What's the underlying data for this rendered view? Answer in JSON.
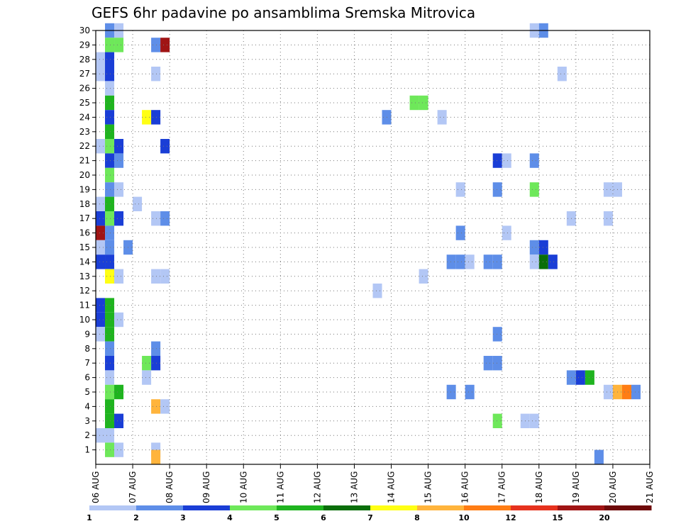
{
  "chart_data": {
    "type": "heatmap",
    "title": "GEFS 6hr padavine po ansamblima Sremska Mitrovica",
    "xlabel": "",
    "ylabel": "",
    "x_ticks": [
      "06 AUG",
      "07 AUG",
      "08 AUG",
      "09 AUG",
      "10 AUG",
      "11 AUG",
      "12 AUG",
      "13 AUG",
      "14 AUG",
      "15 AUG",
      "16 AUG",
      "17 AUG",
      "18 AUG",
      "19 AUG",
      "20 AUG",
      "21 AUG"
    ],
    "x_range_days": [
      6,
      21
    ],
    "y_ticks": [
      1,
      2,
      3,
      4,
      5,
      6,
      7,
      8,
      9,
      10,
      11,
      12,
      13,
      14,
      15,
      16,
      17,
      18,
      19,
      20,
      21,
      22,
      23,
      24,
      25,
      26,
      27,
      28,
      29,
      30
    ],
    "y_range": [
      0,
      30
    ],
    "grid": true,
    "legend": "bottom",
    "colorbar": {
      "labels": [
        "1",
        "2",
        "3",
        "4",
        "5",
        "6",
        "7",
        "8",
        "10",
        "12",
        "15",
        "20"
      ],
      "colors": [
        "#b3c7f5",
        "#5e8ee8",
        "#1a3ed6",
        "#6ee85a",
        "#1fb41f",
        "#0a6e0a",
        "#ffff14",
        "#ffb43c",
        "#ff7d14",
        "#e6321e",
        "#a01414",
        "#6e0a0a"
      ]
    },
    "cells": [
      {
        "m": 30,
        "d": 6.25,
        "v": 2
      },
      {
        "m": 30,
        "d": 6.5,
        "v": 1
      },
      {
        "m": 30,
        "d": 17.75,
        "v": 1
      },
      {
        "m": 30,
        "d": 18,
        "v": 2
      },
      {
        "m": 29,
        "d": 6.25,
        "v": 4
      },
      {
        "m": 29,
        "d": 6.5,
        "v": 4
      },
      {
        "m": 29,
        "d": 7.5,
        "v": 2
      },
      {
        "m": 29,
        "d": 7.75,
        "v": 15
      },
      {
        "m": 28,
        "d": 6,
        "v": 1
      },
      {
        "m": 28,
        "d": 6.25,
        "v": 3
      },
      {
        "m": 27,
        "d": 6,
        "v": 1
      },
      {
        "m": 27,
        "d": 6.25,
        "v": 3
      },
      {
        "m": 27,
        "d": 7.5,
        "v": 1
      },
      {
        "m": 27,
        "d": 18.5,
        "v": 1
      },
      {
        "m": 26,
        "d": 6.25,
        "v": 1
      },
      {
        "m": 25,
        "d": 6.25,
        "v": 5
      },
      {
        "m": 25,
        "d": 14.5,
        "v": 4
      },
      {
        "m": 25,
        "d": 14.75,
        "v": 4
      },
      {
        "m": 24,
        "d": 6.25,
        "v": 3
      },
      {
        "m": 24,
        "d": 7.25,
        "v": 7
      },
      {
        "m": 24,
        "d": 7.5,
        "v": 3
      },
      {
        "m": 24,
        "d": 13.75,
        "v": 2
      },
      {
        "m": 24,
        "d": 15.25,
        "v": 1
      },
      {
        "m": 23,
        "d": 6.25,
        "v": 5
      },
      {
        "m": 22,
        "d": 6,
        "v": 1
      },
      {
        "m": 22,
        "d": 6.25,
        "v": 4
      },
      {
        "m": 22,
        "d": 6.5,
        "v": 3
      },
      {
        "m": 22,
        "d": 7.75,
        "v": 3
      },
      {
        "m": 21,
        "d": 6.25,
        "v": 3
      },
      {
        "m": 21,
        "d": 6.5,
        "v": 2
      },
      {
        "m": 21,
        "d": 16.75,
        "v": 3
      },
      {
        "m": 21,
        "d": 17,
        "v": 1
      },
      {
        "m": 21,
        "d": 17.75,
        "v": 2
      },
      {
        "m": 20,
        "d": 6.25,
        "v": 4
      },
      {
        "m": 19,
        "d": 6.25,
        "v": 2
      },
      {
        "m": 19,
        "d": 6.5,
        "v": 1
      },
      {
        "m": 19,
        "d": 15.75,
        "v": 1
      },
      {
        "m": 19,
        "d": 16.75,
        "v": 2
      },
      {
        "m": 19,
        "d": 17.75,
        "v": 4
      },
      {
        "m": 19,
        "d": 19.75,
        "v": 1
      },
      {
        "m": 19,
        "d": 20,
        "v": 1
      },
      {
        "m": 18,
        "d": 6,
        "v": 1
      },
      {
        "m": 18,
        "d": 6.25,
        "v": 5
      },
      {
        "m": 18,
        "d": 7,
        "v": 1
      },
      {
        "m": 17,
        "d": 6,
        "v": 3
      },
      {
        "m": 17,
        "d": 6.25,
        "v": 4
      },
      {
        "m": 17,
        "d": 6.5,
        "v": 3
      },
      {
        "m": 17,
        "d": 7.5,
        "v": 1
      },
      {
        "m": 17,
        "d": 7.75,
        "v": 2
      },
      {
        "m": 17,
        "d": 18.75,
        "v": 1
      },
      {
        "m": 17,
        "d": 19.75,
        "v": 1
      },
      {
        "m": 16,
        "d": 6,
        "v": 15
      },
      {
        "m": 16,
        "d": 6.25,
        "v": 2
      },
      {
        "m": 16,
        "d": 15.75,
        "v": 2
      },
      {
        "m": 16,
        "d": 17,
        "v": 1
      },
      {
        "m": 15,
        "d": 6,
        "v": 1
      },
      {
        "m": 15,
        "d": 6.25,
        "v": 2
      },
      {
        "m": 15,
        "d": 6.75,
        "v": 2
      },
      {
        "m": 15,
        "d": 17.75,
        "v": 2
      },
      {
        "m": 15,
        "d": 18,
        "v": 3
      },
      {
        "m": 14,
        "d": 6,
        "v": 3
      },
      {
        "m": 14,
        "d": 6.25,
        "v": 3
      },
      {
        "m": 14,
        "d": 15.5,
        "v": 2
      },
      {
        "m": 14,
        "d": 15.75,
        "v": 2
      },
      {
        "m": 14,
        "d": 16,
        "v": 1
      },
      {
        "m": 14,
        "d": 16.5,
        "v": 2
      },
      {
        "m": 14,
        "d": 16.75,
        "v": 2
      },
      {
        "m": 14,
        "d": 17.75,
        "v": 1
      },
      {
        "m": 14,
        "d": 18,
        "v": 6
      },
      {
        "m": 14,
        "d": 18.25,
        "v": 3
      },
      {
        "m": 13,
        "d": 6.25,
        "v": 7
      },
      {
        "m": 13,
        "d": 6.5,
        "v": 1
      },
      {
        "m": 13,
        "d": 7.5,
        "v": 1
      },
      {
        "m": 13,
        "d": 7.75,
        "v": 1
      },
      {
        "m": 13,
        "d": 14.75,
        "v": 1
      },
      {
        "m": 12,
        "d": 13.5,
        "v": 1
      },
      {
        "m": 11,
        "d": 6,
        "v": 3
      },
      {
        "m": 11,
        "d": 6.25,
        "v": 5
      },
      {
        "m": 10,
        "d": 6,
        "v": 3
      },
      {
        "m": 10,
        "d": 6.25,
        "v": 5
      },
      {
        "m": 10,
        "d": 6.5,
        "v": 1
      },
      {
        "m": 9,
        "d": 6,
        "v": 1
      },
      {
        "m": 9,
        "d": 6.25,
        "v": 5
      },
      {
        "m": 9,
        "d": 16.75,
        "v": 2
      },
      {
        "m": 8,
        "d": 6.25,
        "v": 2
      },
      {
        "m": 8,
        "d": 7.5,
        "v": 2
      },
      {
        "m": 7,
        "d": 6.25,
        "v": 3
      },
      {
        "m": 7,
        "d": 7.25,
        "v": 4
      },
      {
        "m": 7,
        "d": 7.5,
        "v": 3
      },
      {
        "m": 7,
        "d": 16.5,
        "v": 2
      },
      {
        "m": 7,
        "d": 16.75,
        "v": 2
      },
      {
        "m": 6,
        "d": 6.25,
        "v": 1
      },
      {
        "m": 6,
        "d": 7.25,
        "v": 1
      },
      {
        "m": 6,
        "d": 18.75,
        "v": 2
      },
      {
        "m": 6,
        "d": 19,
        "v": 3
      },
      {
        "m": 6,
        "d": 19.25,
        "v": 5
      },
      {
        "m": 5,
        "d": 6.25,
        "v": 4
      },
      {
        "m": 5,
        "d": 6.5,
        "v": 5
      },
      {
        "m": 5,
        "d": 15.5,
        "v": 2
      },
      {
        "m": 5,
        "d": 16,
        "v": 2
      },
      {
        "m": 5,
        "d": 19.75,
        "v": 1
      },
      {
        "m": 5,
        "d": 20,
        "v": 8
      },
      {
        "m": 5,
        "d": 20.25,
        "v": 10
      },
      {
        "m": 5,
        "d": 20.5,
        "v": 2
      },
      {
        "m": 4,
        "d": 6.25,
        "v": 5
      },
      {
        "m": 4,
        "d": 7.5,
        "v": 8
      },
      {
        "m": 4,
        "d": 7.75,
        "v": 1
      },
      {
        "m": 3,
        "d": 6.25,
        "v": 5
      },
      {
        "m": 3,
        "d": 6.5,
        "v": 3
      },
      {
        "m": 3,
        "d": 16.75,
        "v": 4
      },
      {
        "m": 3,
        "d": 17.5,
        "v": 1
      },
      {
        "m": 3,
        "d": 17.75,
        "v": 1
      },
      {
        "m": 2,
        "d": 6,
        "v": 1
      },
      {
        "m": 2,
        "d": 6.25,
        "v": 1
      },
      {
        "m": 1,
        "d": 6.25,
        "v": 4
      },
      {
        "m": 1,
        "d": 6.5,
        "v": 1
      },
      {
        "m": 1,
        "d": 7.5,
        "v": 1
      },
      {
        "m": 0.5,
        "d": 7.5,
        "v": 8
      },
      {
        "m": 0.5,
        "d": 19.5,
        "v": 2
      }
    ]
  }
}
